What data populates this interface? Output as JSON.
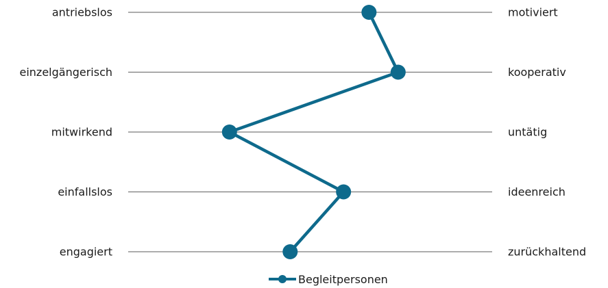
{
  "chart_data": {
    "type": "line",
    "orientation": "horizontal",
    "left_labels": [
      "antriebslos",
      "einzelgängerisch",
      "mitwirkend",
      "einfallslos",
      "engagiert"
    ],
    "right_labels": [
      "motiviert",
      "kooperativ",
      "untätig",
      "ideenreich",
      "zurückhaltend"
    ],
    "xlim": [
      -3,
      3
    ],
    "series": [
      {
        "name": "Begleitpersonen",
        "values": [
          0.97,
          1.45,
          -1.33,
          0.55,
          -0.33
        ]
      }
    ],
    "grid": true,
    "legend_position": "bottom-center",
    "colors": {
      "series": "#0e6a8c",
      "grid": "#7a7a7a",
      "text": "#1a1a1a"
    }
  }
}
